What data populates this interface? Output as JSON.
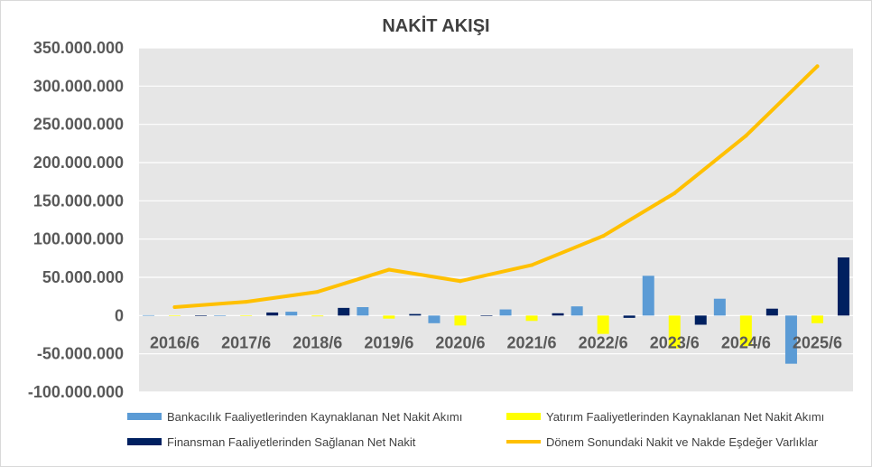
{
  "chart_data": {
    "type": "bar",
    "title": "NAKİT AKIŞI",
    "categories": [
      "2016/6",
      "2017/6",
      "2018/6",
      "2019/6",
      "2020/6",
      "2021/6",
      "2022/6",
      "2023/6",
      "2024/6",
      "2025/6"
    ],
    "ylim": [
      -100000000,
      350000000
    ],
    "yticks": [
      -100000000,
      -50000000,
      0,
      50000000,
      100000000,
      150000000,
      200000000,
      250000000,
      300000000,
      350000000
    ],
    "ytick_labels": [
      "-100.000.000",
      "-50.000.000",
      "0",
      "50.000.000",
      "100.000.000",
      "150.000.000",
      "200.000.000",
      "250.000.000",
      "300.000.000",
      "350.000.000"
    ],
    "grid": true,
    "legend_position": "bottom",
    "series": [
      {
        "name": "Bankacılık Faaliyetlerinden Kaynaklanan Net Nakit Akımı",
        "kind": "bar",
        "color": "#5b9bd5",
        "values": [
          500000,
          300000,
          5000000,
          11000000,
          -10000000,
          8000000,
          12000000,
          52000000,
          22000000,
          -63000000
        ]
      },
      {
        "name": "Yatırım Faaliyetlerinden Kaynaklanan Net Nakit Akımı",
        "kind": "bar",
        "color": "#ffff00",
        "values": [
          -500000,
          -500000,
          -1000000,
          -4000000,
          -13000000,
          -7000000,
          -24000000,
          -43000000,
          -40000000,
          -10000000
        ]
      },
      {
        "name": "Finansman Faaliyetlerinden Sağlanan Net Nakit",
        "kind": "bar",
        "color": "#002060",
        "values": [
          300000,
          4000000,
          10000000,
          2000000,
          0,
          3000000,
          -3000000,
          -12000000,
          9000000,
          76000000
        ]
      },
      {
        "name": "Dönem Sonundaki Nakit ve Nakde Eşdeğer Varlıklar",
        "kind": "line",
        "color": "#ffc000",
        "values": [
          11000000,
          18000000,
          31000000,
          60000000,
          45000000,
          66000000,
          104000000,
          160000000,
          235000000,
          326000000
        ]
      }
    ]
  }
}
